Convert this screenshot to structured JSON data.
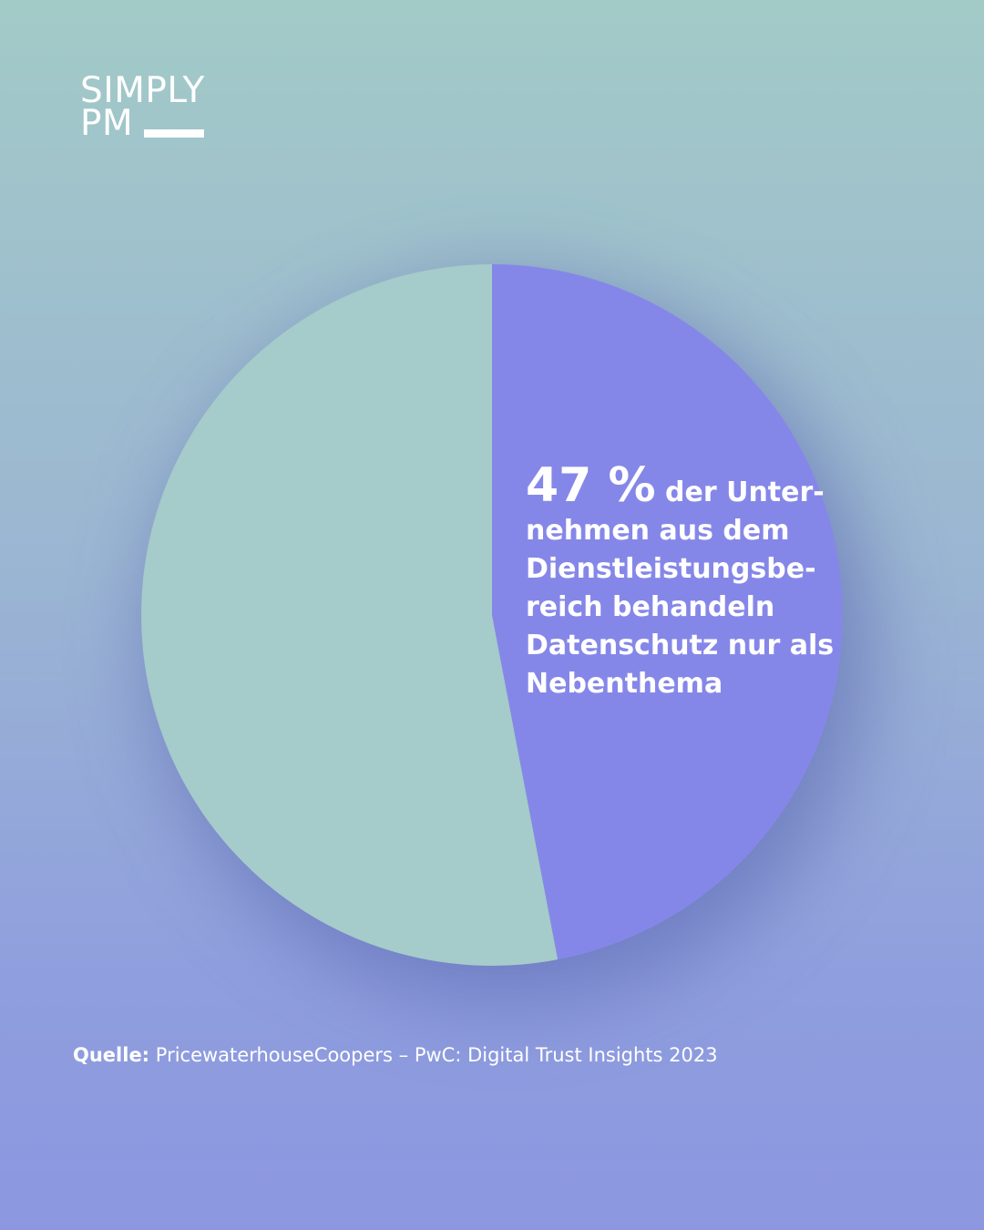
{
  "brand": {
    "line1": "SIMPLY",
    "line2": "PM"
  },
  "colors": {
    "highlight": "#8587e8",
    "remainder": "#a5cbca",
    "text": "#ffffff"
  },
  "chart_data": {
    "type": "pie",
    "slices": [
      {
        "label": "",
        "value": 47,
        "color": "#8587e8"
      },
      {
        "label": "",
        "value": 53,
        "color": "#a5cbca"
      }
    ],
    "title": "",
    "annotation": {
      "highlight": "47 %",
      "text": "der Unter-nehmen aus dem Dienstleistungsbe-reich behandeln Datenschutz nur als Nebenthema"
    }
  },
  "source": {
    "label": "Quelle:",
    "text": "PricewaterhouseCoopers – PwC: Digital Trust Insights 2023"
  }
}
